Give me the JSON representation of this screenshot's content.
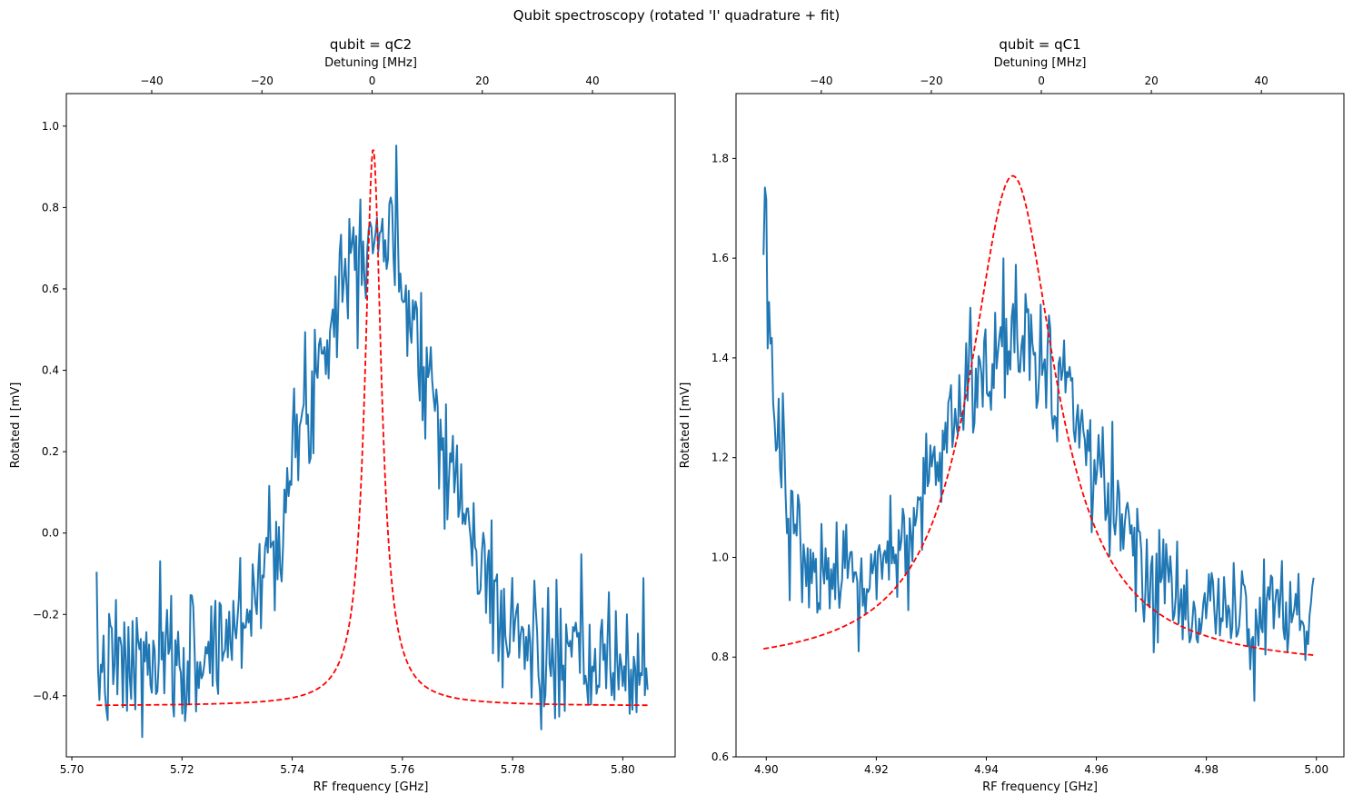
{
  "figure": {
    "suptitle": "Qubit spectroscopy (rotated 'I' quadrature + fit)"
  },
  "chart_data": [
    {
      "type": "line",
      "title": "qubit = qC2",
      "xlabel": "RF frequency [GHz]",
      "ylabel": "Rotated I [mV]",
      "top_xlabel": "Detuning [MHz]",
      "xlim": [
        5.699,
        5.8095
      ],
      "ylim": [
        -0.55,
        1.08
      ],
      "xticks": [
        5.7,
        5.72,
        5.74,
        5.76,
        5.78,
        5.8
      ],
      "xtick_labels": [
        "5.70",
        "5.72",
        "5.74",
        "5.76",
        "5.78",
        "5.80"
      ],
      "yticks": [
        -0.4,
        -0.2,
        0.0,
        0.2,
        0.4,
        0.6,
        0.8,
        1.0
      ],
      "ytick_labels": [
        "−0.4",
        "−0.2",
        "0.0",
        "0.2",
        "0.4",
        "0.6",
        "0.8",
        "1.0"
      ],
      "top_ticks": [
        -40,
        -20,
        0,
        20,
        40
      ],
      "top_tick_labels": [
        "−40",
        "−20",
        "0",
        "20",
        "40"
      ],
      "top_center_ghz": 5.7545,
      "grid": false,
      "series": [
        {
          "role": "data",
          "color": "#1f77b4",
          "style": "solid",
          "x_range": [
            5.7045,
            5.8045
          ],
          "num_points": 400,
          "profile": "gaussian",
          "center": 5.7545,
          "width": 0.0115,
          "amplitude": 1.08,
          "offset": -0.33,
          "noise": 0.085,
          "seed": 7,
          "x": [
            5.7045,
            5.7075,
            5.7105,
            5.7135,
            5.7165,
            5.7195,
            5.7225,
            5.7255,
            5.7285,
            5.7315,
            5.7345,
            5.7375,
            5.7405,
            5.7435,
            5.7465,
            5.7495,
            5.7515,
            5.7545,
            5.7575,
            5.7605,
            5.7635,
            5.7665,
            5.7695,
            5.7725,
            5.7755,
            5.7785,
            5.7815,
            5.7845,
            5.7875,
            5.7905,
            5.7935,
            5.7965,
            5.7995,
            5.8025,
            5.8045
          ],
          "y": [
            -0.32,
            -0.38,
            -0.27,
            -0.33,
            -0.22,
            -0.3,
            -0.25,
            -0.12,
            -0.08,
            -0.05,
            -0.02,
            0.0,
            0.12,
            0.33,
            0.5,
            0.66,
            0.72,
            0.83,
            0.7,
            0.62,
            0.47,
            0.35,
            0.2,
            0.12,
            -0.1,
            -0.12,
            -0.18,
            -0.2,
            -0.22,
            -0.27,
            -0.3,
            -0.3,
            -0.36,
            -0.33,
            -0.16
          ]
        },
        {
          "role": "fit",
          "color": "#ff0000",
          "style": "dashed",
          "x_range": [
            5.7045,
            5.8045
          ],
          "profile": "lorentzian",
          "center": 5.7547,
          "hwhm": 0.0018,
          "amplitude": 1.37,
          "offset": -0.425,
          "x": [
            5.7045,
            5.7245,
            5.7395,
            5.7455,
            5.7495,
            5.7525,
            5.7547,
            5.7565,
            5.7595,
            5.7645,
            5.7745,
            5.7945,
            5.8045
          ],
          "y": [
            -0.42,
            -0.41,
            -0.37,
            -0.29,
            -0.12,
            0.56,
            0.95,
            0.79,
            0.1,
            -0.3,
            -0.39,
            -0.42,
            -0.42
          ]
        }
      ]
    },
    {
      "type": "line",
      "title": "qubit = qC1",
      "xlabel": "RF frequency [GHz]",
      "ylabel": "Rotated I [mV]",
      "top_xlabel": "Detuning [MHz]",
      "xlim": [
        4.8945,
        5.005
      ],
      "ylim": [
        0.6,
        1.93
      ],
      "xticks": [
        4.9,
        4.92,
        4.94,
        4.96,
        4.98,
        5.0
      ],
      "xtick_labels": [
        "4.90",
        "4.92",
        "4.94",
        "4.96",
        "4.98",
        "5.00"
      ],
      "yticks": [
        0.6,
        0.8,
        1.0,
        1.2,
        1.4,
        1.6,
        1.8
      ],
      "ytick_labels": [
        "0.6",
        "0.8",
        "1.0",
        "1.2",
        "1.4",
        "1.6",
        "1.8"
      ],
      "top_ticks": [
        -40,
        -20,
        0,
        20,
        40
      ],
      "top_tick_labels": [
        "−40",
        "−20",
        "0",
        "20",
        "40"
      ],
      "top_center_ghz": 4.95,
      "grid": false,
      "series": [
        {
          "role": "data",
          "color": "#1f77b4",
          "style": "solid",
          "x_range": [
            4.8995,
            4.9995
          ],
          "num_points": 400,
          "profile": "gaussian+decay",
          "center": 4.9455,
          "width": 0.0125,
          "amplitude": 0.55,
          "offset": 0.9,
          "slope": -1.7,
          "decay_amp": 0.75,
          "decay_tau": 0.0035,
          "noise": 0.065,
          "seed": 13,
          "x": [
            4.8995,
            4.9005,
            4.9015,
            4.9035,
            4.9065,
            4.9105,
            4.9145,
            4.9185,
            4.9225,
            4.9265,
            4.9305,
            4.9345,
            4.9385,
            4.9425,
            4.9455,
            4.9485,
            4.9525,
            4.9565,
            4.9605,
            4.9645,
            4.9685,
            4.9725,
            4.9765,
            4.9805,
            4.9845,
            4.9885,
            4.9925,
            4.9965,
            4.9995
          ],
          "y": [
            1.88,
            1.55,
            1.45,
            1.3,
            1.18,
            1.08,
            1.0,
            0.98,
            1.03,
            1.05,
            1.1,
            1.2,
            1.35,
            1.48,
            1.55,
            1.5,
            1.45,
            1.36,
            1.25,
            1.15,
            1.03,
            0.95,
            0.92,
            0.88,
            0.85,
            0.8,
            0.77,
            0.75,
            0.81
          ]
        },
        {
          "role": "fit",
          "color": "#ff0000",
          "style": "dashed",
          "x_range": [
            4.8995,
            4.9995
          ],
          "profile": "lorentzian",
          "center": 4.9448,
          "hwhm": 0.0095,
          "amplitude": 0.99,
          "offset": 0.775,
          "x": [
            4.8995,
            4.9145,
            4.9245,
            4.9305,
            4.9355,
            4.9405,
            4.9448,
            4.9495,
            4.9555,
            4.9605,
            4.9705,
            4.9855,
            4.9995
          ],
          "y": [
            0.82,
            0.87,
            0.95,
            1.05,
            1.26,
            1.6,
            1.76,
            1.6,
            1.3,
            1.08,
            0.92,
            0.84,
            0.8
          ]
        }
      ]
    }
  ]
}
